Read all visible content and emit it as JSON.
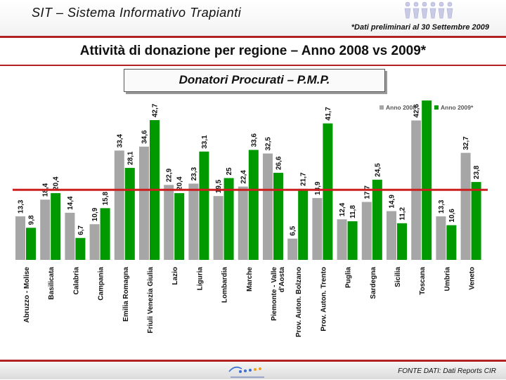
{
  "header": {
    "system_title": "SIT – Sistema Informativo Trapianti",
    "note": "*Dati preliminari al 30 Settembre 2009"
  },
  "main_title": "Attività di donazione per regione – Anno 2008 vs 2009*",
  "subtitle": "Donatori Procurati – P.M.P.",
  "footer": {
    "source": "FONTE DATI: Dati Reports CIR"
  },
  "colors": {
    "accent": "#b22222",
    "series_2008": "#a6a6a6",
    "series_2009": "#009900",
    "reference_line": "#cc1f1f"
  },
  "chart_data": {
    "type": "bar",
    "title": "Donatori Procurati – P.M.P.",
    "xlabel": "",
    "ylabel": "",
    "ylim": [
      0,
      55
    ],
    "grid": false,
    "legend_position": "top-right",
    "categories": [
      "Abruzzo - Molise",
      "Basilicata",
      "Calabria",
      "Campania",
      "Emilia Romagna",
      "Friuli Venezia Giulia",
      "Lazio",
      "Liguria",
      "Lombardia",
      "Marche",
      "Piemonte - Valle d'Aosta",
      "Prov. Auton. Bolzano",
      "Prov. Auton. Trento",
      "Puglia",
      "Sardegna",
      "Sicilia",
      "Toscana",
      "Umbria",
      "Veneto"
    ],
    "series": [
      {
        "name": "Anno 2008",
        "values": [
          13.3,
          18.4,
          14.4,
          10.9,
          33.4,
          34.6,
          22.9,
          23.3,
          19.5,
          22.4,
          32.5,
          6.5,
          18.9,
          12.4,
          17.7,
          14.9,
          42.6,
          13.3,
          32.7
        ]
      },
      {
        "name": "Anno 2009*",
        "values": [
          9.8,
          20.4,
          6.7,
          15.8,
          28.1,
          42.7,
          20.4,
          33.1,
          25.0,
          33.6,
          26.6,
          21.7,
          41.7,
          11.8,
          24.5,
          11.2,
          48.7,
          10.6,
          23.8
        ]
      }
    ],
    "reference_line": 21.4
  }
}
